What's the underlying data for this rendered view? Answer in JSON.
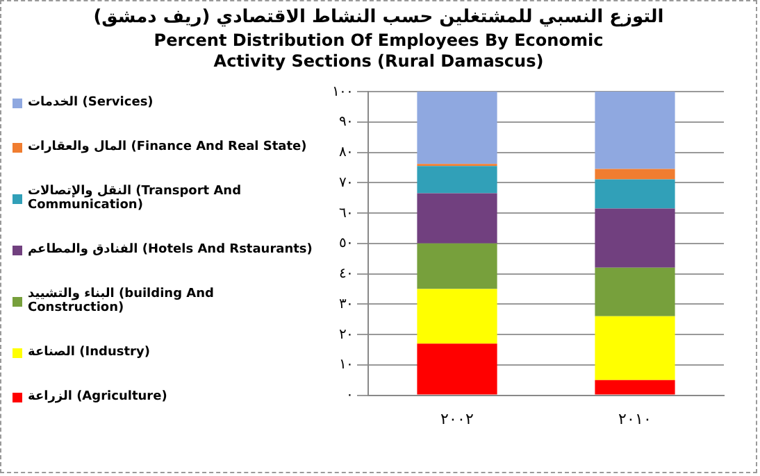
{
  "chart_data": {
    "type": "bar",
    "stacked": true,
    "title": "التوزع النسبي للمشتغلين حسب النشاط الاقتصادي (ريف دمشق)",
    "subtitle": "Percent Distribution Of Employees By Economic Activity Sections (Rural Damascus)",
    "categories": [
      "٢٠٠٢",
      "٢٠١٠"
    ],
    "series": [
      {
        "name": "الزراعة (Agriculture)",
        "color": "#ff0000",
        "values": [
          17,
          5
        ]
      },
      {
        "name": "الصناعة (Industry)",
        "color": "#ffff00",
        "values": [
          18,
          21
        ]
      },
      {
        "name": "البناء والتشييد (building And Construction)",
        "color": "#77a03c",
        "values": [
          15,
          16
        ]
      },
      {
        "name": "الفنادق والمطاعم (Hotels And Rstaurants)",
        "color": "#71407f",
        "values": [
          16.5,
          19.5
        ]
      },
      {
        "name": "النقل والإتصالات (Transport And Communication)",
        "color": "#31a0b8",
        "values": [
          9,
          9.6
        ]
      },
      {
        "name": "المال والعقارات (Finance And Real State)",
        "color": "#f07d30",
        "values": [
          0.7,
          3.4
        ]
      },
      {
        "name": "الخدمات (Services)",
        "color": "#8fa8e0",
        "values": [
          23.8,
          25.5
        ]
      }
    ],
    "ylim": [
      0,
      100
    ],
    "yticks": [
      {
        "value": 0,
        "label": "٠"
      },
      {
        "value": 10,
        "label": "١٠"
      },
      {
        "value": 20,
        "label": "٢٠"
      },
      {
        "value": 30,
        "label": "٣٠"
      },
      {
        "value": 40,
        "label": "٤٠"
      },
      {
        "value": 50,
        "label": "٥٠"
      },
      {
        "value": 60,
        "label": "٦٠"
      },
      {
        "value": 70,
        "label": "٧٠"
      },
      {
        "value": 80,
        "label": "٨٠"
      },
      {
        "value": 90,
        "label": "٩٠"
      },
      {
        "value": 100,
        "label": "١٠٠"
      }
    ],
    "grid": "y",
    "legend": "left"
  }
}
